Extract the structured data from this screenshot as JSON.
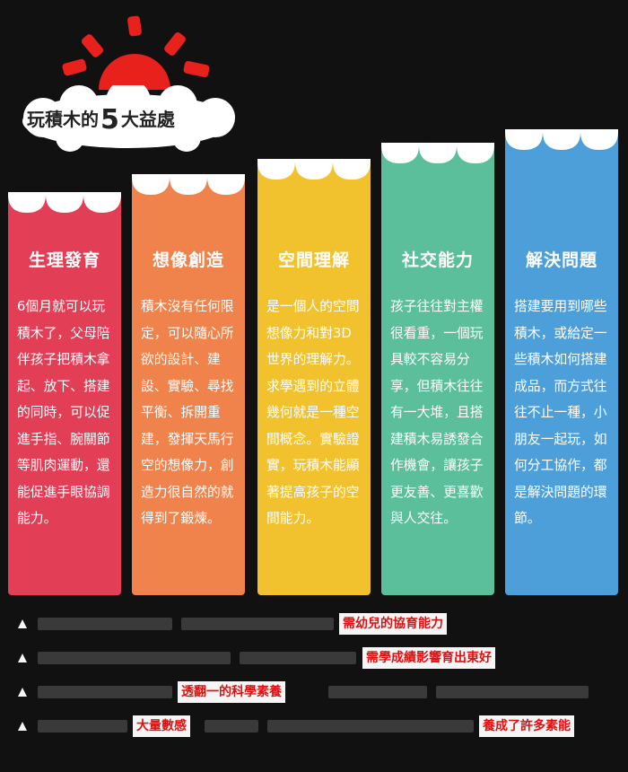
{
  "header": {
    "title_prefix": "玩積木的",
    "title_number": "5",
    "title_suffix": "大益處",
    "sun_color": "#e8211d",
    "cloud_color": "#ffffff"
  },
  "columns": [
    {
      "title": "生理發育",
      "body": "6個月就可以玩積木了，父母陪伴孩子把積木拿起、放下、搭建的同時，可以促進手指、腕關節等肌肉運動，還能促進手眼協調能力。",
      "color": "#e23e56"
    },
    {
      "title": "想像創造",
      "body": "積木沒有任何限定，可以隨心所欲的設計、建設、實驗、尋找平衡、拆開重建，發揮天馬行空的想像力，創造力很自然的就得到了鍛煉。",
      "color": "#f0834c"
    },
    {
      "title": "空間理解",
      "body": "是一個人的空間想像力和對3D世界的理解力。求學遇到的立體幾何就是一種空間概念。實驗證實，玩積木能顯著提高孩子的空間能力。",
      "color": "#f2c22e"
    },
    {
      "title": "社交能力",
      "body": "孩子往往對主權很看重，一個玩具較不容易分享，但積木往往有一大堆，且搭建積木易誘發合作機會，讓孩子更友善、更喜歡與人交往。",
      "color": "#5cbf9b"
    },
    {
      "title": "解決問題",
      "body": "搭建要用到哪些積木，或給定一些積木如何搭建成品，而方式往往不止一種，小朋友一起玩，如何分工協作，都是解決問題的環節。",
      "color": "#4d9fd9"
    }
  ],
  "bottom_list": {
    "bullet_color": "#f5f5f5",
    "rows": [
      {
        "highlights": [
          "需幼兒的協育能力"
        ]
      },
      {
        "highlights": [
          "需學成績影響育出東好"
        ]
      },
      {
        "highlights": [
          "透翻一的科學素養"
        ]
      },
      {
        "highlights": [
          "大量數感",
          "養成了許多素能"
        ]
      }
    ]
  }
}
